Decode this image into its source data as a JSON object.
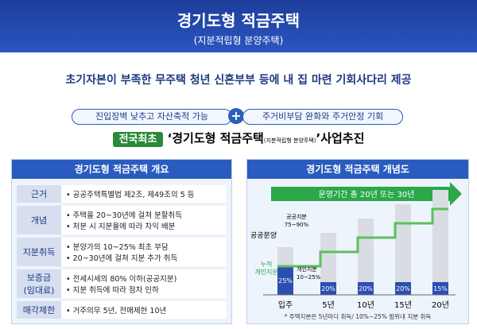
{
  "header": {
    "title": "경기도형 적금주택",
    "subtitle": "(지분적립형 분양주택)"
  },
  "tagline": "초기자본이 부족한 무주택 청년 신혼부부 등에 내 집 마련 기회사다리 제공",
  "pills": [
    "진입장벽 낮추고 자산축적 가능",
    "주거비부담 완화와 주거안정 기회"
  ],
  "headline": {
    "badge": "전국최초",
    "main": "‘경기도형 적금주택",
    "small": "(지분적립형 분양주택)",
    "end": "’사업추진"
  },
  "overview": {
    "title": "경기도형 적금주택 개요",
    "rows": [
      {
        "label": [
          "근거"
        ],
        "items": [
          "공공주택특별법 제2조, 제49조의 5 등"
        ]
      },
      {
        "label": [
          "개념"
        ],
        "items": [
          "주택을 20~30년에 걸쳐 분할취득",
          "처분 시 지분율에 따라 차익 배분"
        ]
      },
      {
        "label": [
          "지분취득"
        ],
        "items": [
          "분양가의 10~25% 최초 부담",
          "20~30년에 걸쳐 지분 추가 취득"
        ]
      },
      {
        "label": [
          "보증금",
          "(임대료)"
        ],
        "items": [
          "전세시세의 80% 이하(공공지분)",
          "지분 취득에 따라 점차 인하"
        ]
      },
      {
        "label": [
          "매각제한"
        ],
        "items": [
          "거주의무 5년, 전매제한 10년"
        ]
      }
    ]
  },
  "diagram": {
    "title": "경기도형 적금주택 개념도",
    "arrow": "운영기간 총 20년 또는 30년",
    "public_label": "공공분양",
    "public_share": [
      "공공지분",
      "75~90%"
    ],
    "cumulative_label": [
      "누적",
      "개인지분"
    ],
    "personal_share": [
      "개인지분",
      "10~25%"
    ],
    "steps": [
      {
        "x": "입주",
        "share": "25%"
      },
      {
        "x": "5년",
        "share": "20%"
      },
      {
        "x": "10년",
        "share": "20%"
      },
      {
        "x": "15년",
        "share": "20%"
      },
      {
        "x": "20년",
        "share": "15%"
      }
    ],
    "note": "* 주택지분은 5년마다 취득/ 10%~25% 범위내 지분 취득"
  }
}
